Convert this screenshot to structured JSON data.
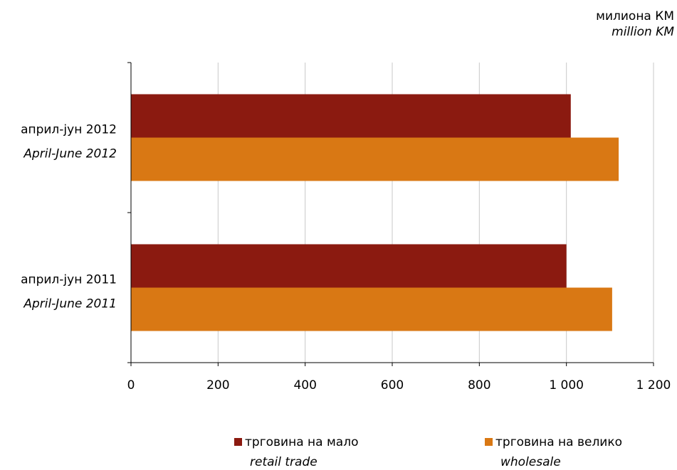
{
  "unit": {
    "line1": "милиона КМ",
    "line2": "million KM"
  },
  "chart_data": {
    "type": "bar",
    "orientation": "horizontal",
    "categories": [
      {
        "label": "април-јун 2012",
        "label_en": "April-June  2012"
      },
      {
        "label": "април-јун 2011",
        "label_en": "April-June  2011"
      }
    ],
    "series": [
      {
        "name": "трговина на мало",
        "name_en": "retail trade",
        "color": "#8B1A10",
        "values": [
          1010,
          1000
        ]
      },
      {
        "name": "трговина на велико",
        "name_en": "wholesale",
        "color": "#D97814",
        "values": [
          1120,
          1105
        ]
      }
    ],
    "xlim": [
      0,
      1200
    ],
    "xticks": [
      0,
      200,
      400,
      600,
      800,
      1000,
      1200
    ],
    "xtick_labels": [
      "0",
      "200",
      "400",
      "600",
      "800",
      "1 000",
      "1 200"
    ],
    "grid": true,
    "legend": "bottom"
  }
}
